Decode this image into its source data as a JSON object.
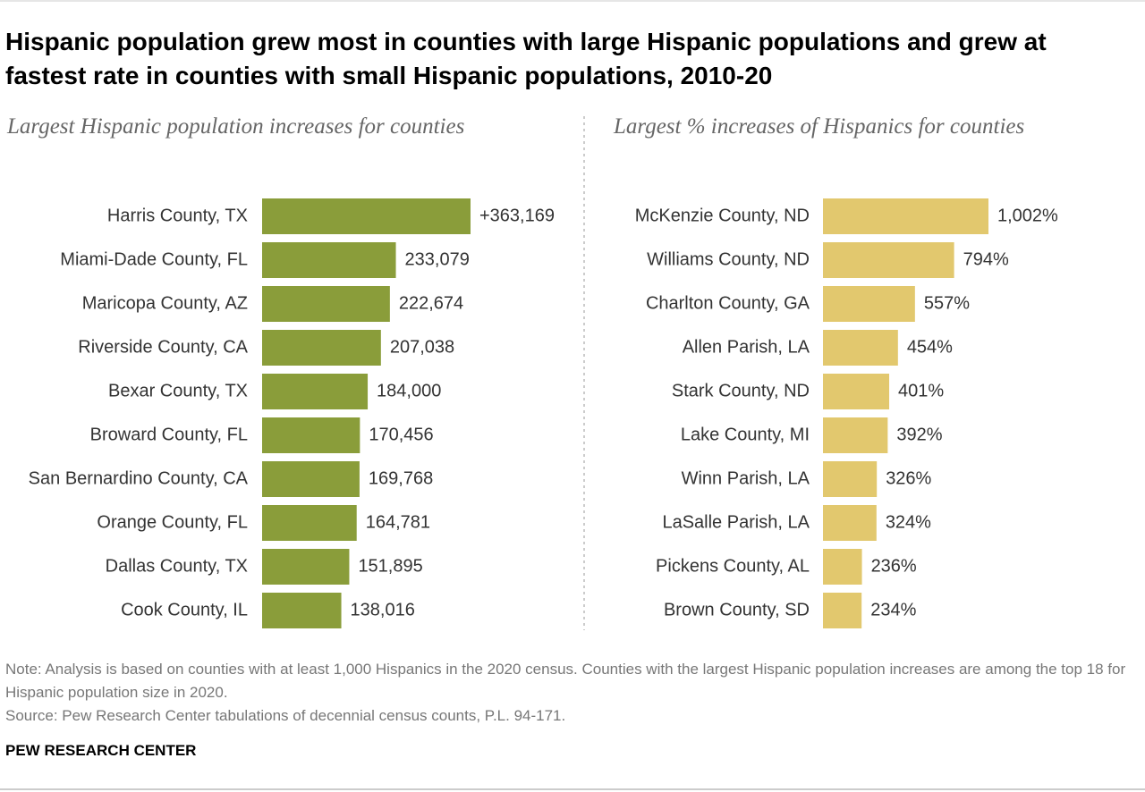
{
  "title": "Hispanic population grew most in counties with large Hispanic populations and grew at fastest rate in counties with small Hispanic populations, 2010-20",
  "note": "Note: Analysis is based on counties with at least 1,000 Hispanics in the 2020 census. Counties with the largest Hispanic population increases are among the top 18 for Hispanic population size in 2020.",
  "source": "Source: Pew Research Center tabulations of decennial census counts, P.L. 94-171.",
  "brand": "PEW RESEARCH CENTER",
  "chart_data": [
    {
      "type": "bar",
      "orientation": "horizontal",
      "title": "Largest Hispanic population increases for counties",
      "color": "#8a9d3a",
      "categories": [
        "Harris County, TX",
        "Miami-Dade County, FL",
        "Maricopa County, AZ",
        "Riverside County, CA",
        "Bexar County, TX",
        "Broward County, FL",
        "San Bernardino County, CA",
        "Orange County, FL",
        "Dallas County, TX",
        "Cook County, IL"
      ],
      "values": [
        363169,
        233079,
        222674,
        207038,
        184000,
        170456,
        169768,
        164781,
        151895,
        138016
      ],
      "value_labels": [
        "+363,169",
        "233,079",
        "222,674",
        "207,038",
        "184,000",
        "170,456",
        "169,768",
        "164,781",
        "151,895",
        "138,016"
      ]
    },
    {
      "type": "bar",
      "orientation": "horizontal",
      "title": "Largest % increases of Hispanics for counties",
      "color": "#e2c86e",
      "categories": [
        "McKenzie County, ND",
        "Williams County, ND",
        "Charlton County, GA",
        "Allen Parish, LA",
        "Stark County, ND",
        "Lake County, MI",
        "Winn Parish, LA",
        "LaSalle Parish, LA",
        "Pickens County, AL",
        "Brown County, SD"
      ],
      "values": [
        1002,
        794,
        557,
        454,
        401,
        392,
        326,
        324,
        236,
        234
      ],
      "value_labels": [
        "1,002%",
        "794%",
        "557%",
        "454%",
        "401%",
        "392%",
        "326%",
        "324%",
        "236%",
        "234%"
      ]
    }
  ]
}
